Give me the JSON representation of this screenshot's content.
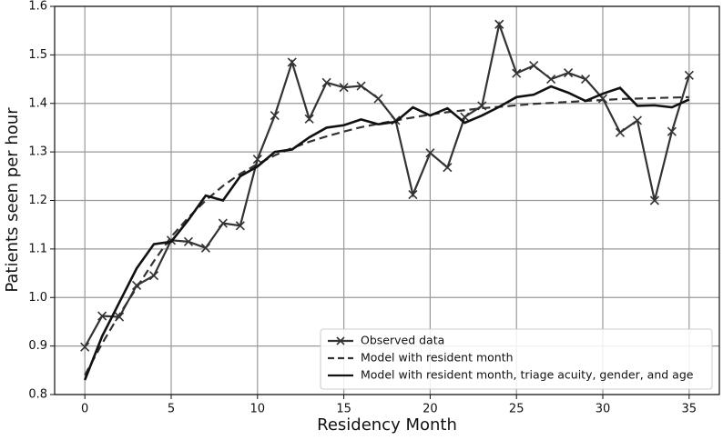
{
  "chart_data": {
    "type": "line",
    "xlabel": "Residency Month",
    "ylabel": "Patients seen per hour",
    "x": [
      0,
      1,
      2,
      3,
      4,
      5,
      6,
      7,
      8,
      9,
      10,
      11,
      12,
      13,
      14,
      15,
      16,
      17,
      18,
      19,
      20,
      21,
      22,
      23,
      24,
      25,
      26,
      27,
      28,
      29,
      30,
      31,
      32,
      33,
      34,
      35
    ],
    "series": [
      {
        "name": "Observed data",
        "color": "#333333",
        "style": "solid",
        "marker": "x",
        "values": [
          0.898,
          0.962,
          0.96,
          1.025,
          1.045,
          1.118,
          1.115,
          1.102,
          1.153,
          1.148,
          1.285,
          1.375,
          1.485,
          1.368,
          1.443,
          1.433,
          1.436,
          1.41,
          1.365,
          1.212,
          1.298,
          1.268,
          1.372,
          1.395,
          1.563,
          1.462,
          1.478,
          1.45,
          1.463,
          1.45,
          1.41,
          1.34,
          1.365,
          1.2,
          1.342,
          1.458
        ]
      },
      {
        "name": "Model with resident month",
        "color": "#333333",
        "style": "dashed",
        "values": [
          0.84,
          0.905,
          0.965,
          1.02,
          1.075,
          1.125,
          1.165,
          1.2,
          1.23,
          1.255,
          1.275,
          1.293,
          1.308,
          1.321,
          1.332,
          1.342,
          1.351,
          1.358,
          1.365,
          1.371,
          1.377,
          1.382,
          1.386,
          1.39,
          1.393,
          1.396,
          1.399,
          1.401,
          1.403,
          1.405,
          1.407,
          1.409,
          1.41,
          1.411,
          1.412,
          1.413
        ]
      },
      {
        "name": "Model with resident month, triage acuity, gender, and age",
        "color": "#111111",
        "style": "solid",
        "values": [
          0.83,
          0.92,
          0.99,
          1.06,
          1.11,
          1.115,
          1.16,
          1.21,
          1.2,
          1.25,
          1.27,
          1.3,
          1.305,
          1.33,
          1.35,
          1.355,
          1.367,
          1.357,
          1.362,
          1.392,
          1.375,
          1.39,
          1.36,
          1.375,
          1.393,
          1.413,
          1.418,
          1.435,
          1.422,
          1.405,
          1.42,
          1.432,
          1.395,
          1.396,
          1.392,
          1.408
        ]
      }
    ],
    "xlim": [
      -1.75,
      36.75
    ],
    "xticks": [
      0,
      5,
      10,
      15,
      20,
      25,
      30,
      35
    ],
    "ylim": [
      0.8,
      1.6
    ],
    "yticks": [
      0.8,
      0.9,
      {
        "value": 1,
        "label": "1.0"
      },
      1.1,
      1.2,
      1.3,
      1.4,
      1.5,
      1.6
    ],
    "grid": true,
    "legend": "lower right"
  }
}
